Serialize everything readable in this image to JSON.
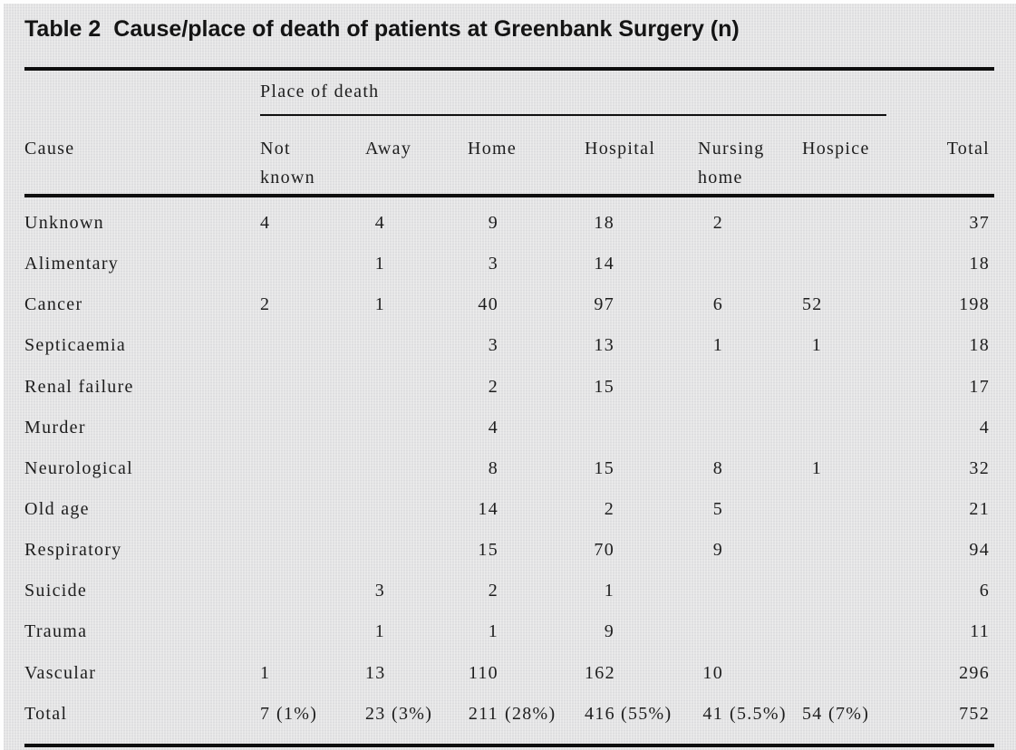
{
  "title": {
    "label": "Table 2",
    "text": "Cause/place of death of patients at Greenbank Surgery (n)"
  },
  "table": {
    "group_header": "Place of death",
    "columns": [
      {
        "l1": "Cause"
      },
      {
        "l1": "Not",
        "l2": "known"
      },
      {
        "l1": "Away"
      },
      {
        "l1": "Home"
      },
      {
        "l1": "Hospital"
      },
      {
        "l1": "Nursing",
        "l2": "home"
      },
      {
        "l1": "Hospice"
      },
      {
        "l1": "Total"
      }
    ],
    "rows": [
      {
        "cause": "Unknown",
        "not_known": "4",
        "away": "4",
        "home": "9",
        "hospital": "18",
        "nursing_home": "2",
        "hospice": "",
        "total": "37"
      },
      {
        "cause": "Alimentary",
        "not_known": "",
        "away": "1",
        "home": "3",
        "hospital": "14",
        "nursing_home": "",
        "hospice": "",
        "total": "18"
      },
      {
        "cause": "Cancer",
        "not_known": "2",
        "away": "1",
        "home": "40",
        "hospital": "97",
        "nursing_home": "6",
        "hospice": "52",
        "total": "198"
      },
      {
        "cause": "Septicaemia",
        "not_known": "",
        "away": "",
        "home": "3",
        "hospital": "13",
        "nursing_home": "1",
        "hospice": "1",
        "total": "18"
      },
      {
        "cause": "Renal failure",
        "not_known": "",
        "away": "",
        "home": "2",
        "hospital": "15",
        "nursing_home": "",
        "hospice": "",
        "total": "17"
      },
      {
        "cause": "Murder",
        "not_known": "",
        "away": "",
        "home": "4",
        "hospital": "",
        "nursing_home": "",
        "hospice": "",
        "total": "4"
      },
      {
        "cause": "Neurological",
        "not_known": "",
        "away": "",
        "home": "8",
        "hospital": "15",
        "nursing_home": "8",
        "hospice": "1",
        "total": "32"
      },
      {
        "cause": "Old age",
        "not_known": "",
        "away": "",
        "home": "14",
        "hospital": "2",
        "nursing_home": "5",
        "hospice": "",
        "total": "21"
      },
      {
        "cause": "Respiratory",
        "not_known": "",
        "away": "",
        "home": "15",
        "hospital": "70",
        "nursing_home": "9",
        "hospice": "",
        "total": "94"
      },
      {
        "cause": "Suicide",
        "not_known": "",
        "away": "3",
        "home": "2",
        "hospital": "1",
        "nursing_home": "",
        "hospice": "",
        "total": "6"
      },
      {
        "cause": "Trauma",
        "not_known": "",
        "away": "1",
        "home": "1",
        "hospital": "9",
        "nursing_home": "",
        "hospice": "",
        "total": "11"
      },
      {
        "cause": "Vascular",
        "not_known": "1",
        "away": "13",
        "home": "110",
        "hospital": "162",
        "nursing_home": "10",
        "hospice": "",
        "total": "296"
      }
    ],
    "total_row": {
      "cause": "Total",
      "not_known": {
        "n": "7",
        "pct": "(1%)"
      },
      "away": {
        "n": "23",
        "pct": "(3%)"
      },
      "home": {
        "n": "211",
        "pct": "(28%)"
      },
      "hospital": {
        "n": "416",
        "pct": "(55%)"
      },
      "nursing_home": {
        "n": "41",
        "pct": "(5.5%)"
      },
      "hospice": {
        "n": "54",
        "pct": "(7%)"
      },
      "total": "752"
    },
    "colors": {
      "background": "#e3e3e4",
      "text": "#1d1d1d",
      "rule": "#101010"
    }
  }
}
